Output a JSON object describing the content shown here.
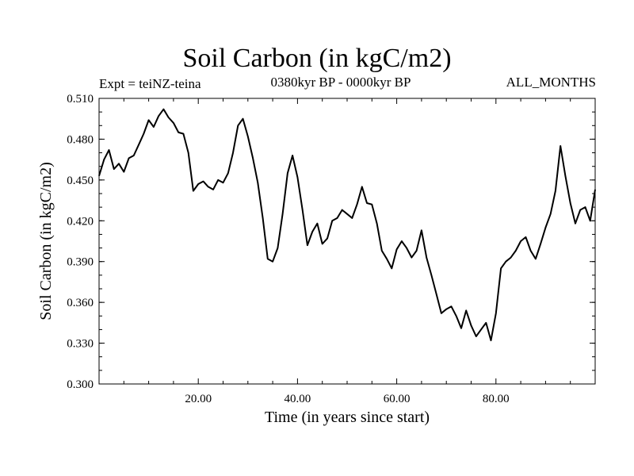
{
  "chart_data": {
    "type": "line",
    "title": "Soil Carbon (in kgC/m2)",
    "subtitle": "0380kyr BP - 0000kyr BP",
    "left_label": "Expt = teiNZ-teina",
    "right_label": "ALL_MONTHS",
    "xlabel": "Time (in years since start)",
    "ylabel": "Soil Carbon (in kgC/m2)",
    "xlim": [
      0,
      100
    ],
    "ylim": [
      0.3,
      0.51
    ],
    "xticks": [
      20,
      40,
      60,
      80
    ],
    "xtick_labels": [
      "20.00",
      "40.00",
      "60.00",
      "80.00"
    ],
    "yticks": [
      0.3,
      0.33,
      0.36,
      0.39,
      0.42,
      0.45,
      0.48,
      0.51
    ],
    "ytick_labels": [
      "0.300",
      "0.330",
      "0.360",
      "0.390",
      "0.420",
      "0.450",
      "0.480",
      "0.510"
    ],
    "grid": false,
    "series": [
      {
        "name": "Soil Carbon",
        "color": "#000000",
        "x": [
          0,
          1,
          2,
          3,
          4,
          5,
          6,
          7,
          8,
          9,
          10,
          11,
          12,
          13,
          14,
          15,
          16,
          17,
          18,
          19,
          20,
          21,
          22,
          23,
          24,
          25,
          26,
          27,
          28,
          29,
          30,
          31,
          32,
          33,
          34,
          35,
          36,
          37,
          38,
          39,
          40,
          41,
          42,
          43,
          44,
          45,
          46,
          47,
          48,
          49,
          50,
          51,
          52,
          53,
          54,
          55,
          56,
          57,
          58,
          59,
          60,
          61,
          62,
          63,
          64,
          65,
          66,
          67,
          68,
          69,
          70,
          71,
          72,
          73,
          74,
          75,
          76,
          77,
          78,
          79,
          80,
          81,
          82,
          83,
          84,
          85,
          86,
          87,
          88,
          89,
          90,
          91,
          92,
          93,
          94,
          95,
          96,
          97,
          98,
          99,
          100
        ],
        "values": [
          0.453,
          0.465,
          0.472,
          0.458,
          0.462,
          0.456,
          0.466,
          0.468,
          0.476,
          0.484,
          0.494,
          0.489,
          0.497,
          0.502,
          0.496,
          0.492,
          0.485,
          0.484,
          0.47,
          0.442,
          0.447,
          0.449,
          0.445,
          0.443,
          0.45,
          0.448,
          0.455,
          0.47,
          0.49,
          0.495,
          0.482,
          0.466,
          0.448,
          0.422,
          0.392,
          0.39,
          0.4,
          0.425,
          0.455,
          0.468,
          0.452,
          0.428,
          0.402,
          0.412,
          0.418,
          0.403,
          0.407,
          0.42,
          0.422,
          0.428,
          0.425,
          0.422,
          0.432,
          0.445,
          0.433,
          0.432,
          0.418,
          0.398,
          0.392,
          0.385,
          0.399,
          0.405,
          0.4,
          0.393,
          0.398,
          0.413,
          0.393,
          0.38,
          0.366,
          0.352,
          0.355,
          0.357,
          0.35,
          0.341,
          0.354,
          0.343,
          0.335,
          0.34,
          0.345,
          0.332,
          0.352,
          0.385,
          0.39,
          0.393,
          0.398,
          0.405,
          0.408,
          0.398,
          0.392,
          0.403,
          0.415,
          0.425,
          0.442,
          0.475,
          0.453,
          0.433,
          0.418,
          0.428,
          0.43,
          0.42,
          0.443
        ]
      }
    ]
  }
}
